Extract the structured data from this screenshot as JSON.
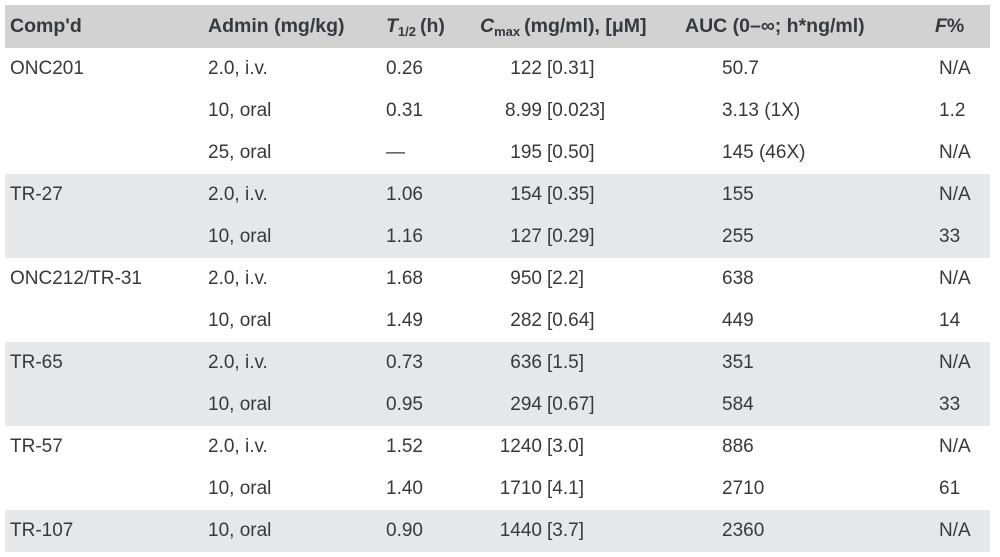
{
  "colors": {
    "header_bg": "#d2d2d2",
    "stripe_bg": "#e6e7e8",
    "text_color": "#37393c",
    "page_bg": "#ffffff"
  },
  "table": {
    "headers": {
      "compound": "Comp'd",
      "admin": "Admin (mg/kg)",
      "thalf": {
        "sym": "T",
        "sub": "1/2",
        "unit": "(h)"
      },
      "cmax": {
        "sym": "C",
        "sub": "max",
        "unit": "(mg/ml), [μM]"
      },
      "auc": "AUC (0–∞; h*ng/ml)",
      "f": {
        "sym": "F",
        "unit": "%"
      }
    },
    "rows": [
      {
        "compound": "ONC201",
        "admin": "2.0, i.v.",
        "thalf": "0.26",
        "cmax_num": "122",
        "cmax_br": "[0.31]",
        "auc": "50.7",
        "f": "N/A",
        "group": 0
      },
      {
        "compound": "",
        "admin": "10, oral",
        "thalf": "0.31",
        "cmax_num": "8.99",
        "cmax_br": "[0.023]",
        "auc": "3.13 (1X)",
        "f": "1.2",
        "group": 0
      },
      {
        "compound": "",
        "admin": "25, oral",
        "thalf": "—",
        "cmax_num": "195",
        "cmax_br": "[0.50]",
        "auc": "145 (46X)",
        "f": "N/A",
        "group": 0
      },
      {
        "compound": "TR-27",
        "admin": "2.0, i.v.",
        "thalf": "1.06",
        "cmax_num": "154",
        "cmax_br": "[0.35]",
        "auc": "155",
        "f": "N/A",
        "group": 1
      },
      {
        "compound": "",
        "admin": "10, oral",
        "thalf": "1.16",
        "cmax_num": "127",
        "cmax_br": "[0.29]",
        "auc": "255",
        "f": "33",
        "group": 1
      },
      {
        "compound": "ONC212/TR-31",
        "admin": "2.0, i.v.",
        "thalf": "1.68",
        "cmax_num": "950",
        "cmax_br": "[2.2]",
        "auc": "638",
        "f": "N/A",
        "group": 2
      },
      {
        "compound": "",
        "admin": "10, oral",
        "thalf": "1.49",
        "cmax_num": "282",
        "cmax_br": "[0.64]",
        "auc": "449",
        "f": "14",
        "group": 2
      },
      {
        "compound": "TR-65",
        "admin": "2.0, i.v.",
        "thalf": "0.73",
        "cmax_num": "636",
        "cmax_br": "[1.5]",
        "auc": "351",
        "f": "N/A",
        "group": 3
      },
      {
        "compound": "",
        "admin": "10, oral",
        "thalf": "0.95",
        "cmax_num": "294",
        "cmax_br": "[0.67]",
        "auc": "584",
        "f": "33",
        "group": 3
      },
      {
        "compound": "TR-57",
        "admin": "2.0, i.v.",
        "thalf": "1.52",
        "cmax_num": "1240",
        "cmax_br": "[3.0]",
        "auc": "886",
        "f": "N/A",
        "group": 4
      },
      {
        "compound": "",
        "admin": "10, oral",
        "thalf": "1.40",
        "cmax_num": "1710",
        "cmax_br": "[4.1]",
        "auc": "2710",
        "f": "61",
        "group": 4
      },
      {
        "compound": "TR-107",
        "admin": "10, oral",
        "thalf": "0.90",
        "cmax_num": "1440",
        "cmax_br": "[3.7]",
        "auc": "2360",
        "f": "N/A",
        "group": 5
      }
    ]
  }
}
